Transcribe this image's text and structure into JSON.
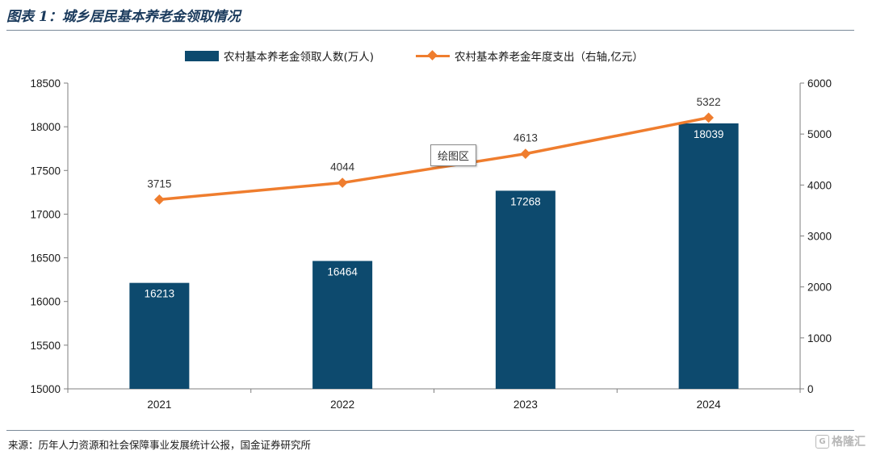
{
  "header": {
    "title": "图表 1：城乡居民基本养老金领取情况"
  },
  "footer": {
    "source": "来源：历年人力资源和社会保障事业发展统计公报，国金证券研究所",
    "watermark_text": "格隆汇",
    "watermark_icon": "G"
  },
  "plot_area_tag": "绘图区",
  "colors": {
    "bar": "#0d4a6e",
    "line": "#ef7d2e",
    "axis": "#7f7f7f"
  },
  "chart_data": {
    "type": "bar",
    "categories": [
      "2021",
      "2022",
      "2023",
      "2024"
    ],
    "series": [
      {
        "name": "农村基本养老金领取人数(万人)",
        "type": "bar",
        "axis": "left",
        "values": [
          16213,
          16464,
          17268,
          18039
        ],
        "labels": [
          "16213",
          "16464",
          "17268",
          "18039"
        ]
      },
      {
        "name": "农村基本养老金年度支出（右轴,亿元）",
        "type": "line",
        "axis": "right",
        "values": [
          3715,
          4044,
          4613,
          5322
        ],
        "labels": [
          "3715",
          "4044",
          "4613",
          "5322"
        ]
      }
    ],
    "left_axis": {
      "ylim": [
        15000,
        18500
      ],
      "ticks": [
        "15000",
        "15500",
        "16000",
        "16500",
        "17000",
        "17500",
        "18000",
        "18500"
      ]
    },
    "right_axis": {
      "ylim": [
        0,
        6000
      ],
      "ticks": [
        "0",
        "1000",
        "2000",
        "3000",
        "4000",
        "5000",
        "6000"
      ]
    },
    "legend_position": "top-center",
    "grid": false
  }
}
